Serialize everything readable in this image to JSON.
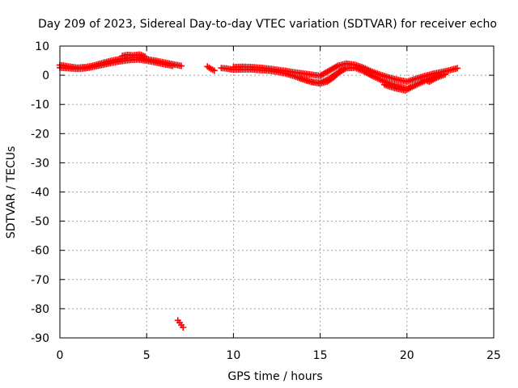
{
  "chart_data": {
    "type": "scatter",
    "title": "Day 209 of 2023, Sidereal Day-to-day VTEC variation (SDTVAR) for receiver echo",
    "xlabel": "GPS time / hours",
    "ylabel": "SDTVAR / TECUs",
    "xlim": [
      0,
      25
    ],
    "ylim": [
      -90,
      10
    ],
    "xticks": [
      0,
      5,
      10,
      15,
      20,
      25
    ],
    "yticks": [
      10,
      0,
      -10,
      -20,
      -30,
      -40,
      -50,
      -60,
      -70,
      -80,
      -90
    ],
    "grid": true,
    "marker": "+",
    "series": [
      {
        "name": "SDTVAR",
        "color": "#ff0000",
        "segments": [
          {
            "x": [
              0.0,
              0.5,
              1.0,
              1.5,
              2.0,
              2.5,
              3.0,
              3.5,
              4.0,
              4.5,
              5.0,
              5.5,
              6.0,
              6.5,
              7.0
            ],
            "y": [
              3.5,
              3.0,
              2.6,
              2.8,
              3.4,
              4.3,
              5.0,
              5.6,
              6.0,
              6.1,
              5.5,
              5.0,
              4.4,
              3.8,
              3.2
            ]
          },
          {
            "x": [
              0.0,
              0.5,
              1.0,
              1.5,
              2.0,
              2.5,
              3.0,
              3.5,
              4.0,
              4.5,
              5.0,
              5.5,
              6.0,
              6.5
            ],
            "y": [
              2.6,
              2.4,
              2.2,
              2.4,
              3.0,
              3.6,
              4.3,
              4.8,
              5.2,
              5.4,
              5.0,
              4.4,
              3.8,
              3.2
            ]
          },
          {
            "x": [
              3.6,
              3.9,
              4.2,
              4.6,
              4.9
            ],
            "y": [
              6.6,
              7.0,
              6.8,
              7.1,
              6.4
            ]
          },
          {
            "x": [
              8.5,
              8.7,
              8.9
            ],
            "y": [
              3.0,
              2.2,
              1.6
            ]
          },
          {
            "x": [
              9.3,
              9.6,
              9.9
            ],
            "y": [
              2.5,
              2.3,
              2.0
            ]
          },
          {
            "x": [
              10.0,
              10.5,
              11.0,
              11.5,
              12.0,
              12.5,
              13.0,
              13.5,
              14.0,
              14.5,
              15.0,
              15.5,
              16.0,
              16.5,
              17.0,
              17.5,
              18.0,
              18.5,
              19.0,
              19.5,
              20.0,
              20.5,
              21.0,
              21.5,
              22.0,
              22.5,
              22.9
            ],
            "y": [
              2.8,
              2.9,
              2.8,
              2.6,
              2.3,
              1.9,
              1.5,
              1.0,
              0.6,
              0.2,
              -0.2,
              1.5,
              3.2,
              4.0,
              3.6,
              2.6,
              1.2,
              0.1,
              -0.8,
              -1.6,
              -2.2,
              -1.2,
              -0.3,
              0.5,
              1.1,
              1.8,
              2.4
            ]
          },
          {
            "x": [
              10.0,
              10.5,
              11.0,
              11.5,
              12.0,
              12.5,
              13.0,
              13.5,
              14.0,
              14.5,
              15.0,
              15.5,
              16.0,
              16.5,
              17.0,
              17.5,
              18.0,
              18.5,
              19.0,
              19.5,
              20.0,
              20.5,
              21.0,
              21.5,
              22.0
            ],
            "y": [
              1.9,
              2.0,
              2.0,
              1.8,
              1.6,
              1.2,
              0.6,
              -0.3,
              -1.4,
              -2.3,
              -2.6,
              -1.2,
              0.8,
              2.4,
              2.6,
              1.4,
              -0.2,
              -1.6,
              -2.8,
              -3.8,
              -4.6,
              -3.4,
              -2.0,
              -0.6,
              0.4
            ]
          },
          {
            "x": [
              13.8,
              14.2,
              14.6,
              15.0,
              15.4,
              15.8,
              16.2
            ],
            "y": [
              -0.8,
              -1.7,
              -2.4,
              -2.8,
              -2.2,
              -0.6,
              1.6
            ]
          },
          {
            "x": [
              18.7,
              19.0,
              19.3,
              19.6,
              19.9,
              20.2,
              20.5
            ],
            "y": [
              -3.2,
              -3.9,
              -4.4,
              -4.8,
              -5.2,
              -4.3,
              -3.4
            ]
          },
          {
            "x": [
              21.0,
              21.3,
              21.6,
              21.9,
              22.2
            ],
            "y": [
              -1.5,
              -2.2,
              -1.2,
              -0.4,
              0.3
            ]
          },
          {
            "x": [
              6.8,
              6.9,
              7.0,
              7.1
            ],
            "y": [
              -84.0,
              -84.8,
              -85.6,
              -86.4
            ]
          }
        ]
      }
    ]
  }
}
